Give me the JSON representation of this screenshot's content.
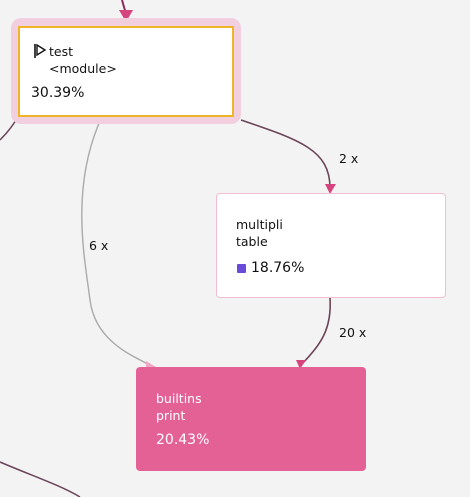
{
  "nodes": {
    "test": {
      "line1": "test",
      "line2": "<module>",
      "percent": "30.39%",
      "icon": "flag-icon"
    },
    "multipli": {
      "line1": "multipli",
      "line2": "table",
      "percent": "18.76%",
      "swatch_color": "#6a4bd9"
    },
    "builtins": {
      "line1": "builtins",
      "line2": "print",
      "percent": "20.43%",
      "fill_color": "#e46196"
    }
  },
  "edges": {
    "test_to_multipli": "2 x",
    "test_to_builtins": "6 x",
    "multipli_to_builtins": "20 x"
  },
  "colors": {
    "selected_border": "#f0b429",
    "selected_halo": "#f2cfdf",
    "edge_dark": "#6b4458",
    "edge_light": "#a9a9a9",
    "arrow_pink": "#d6447f"
  }
}
